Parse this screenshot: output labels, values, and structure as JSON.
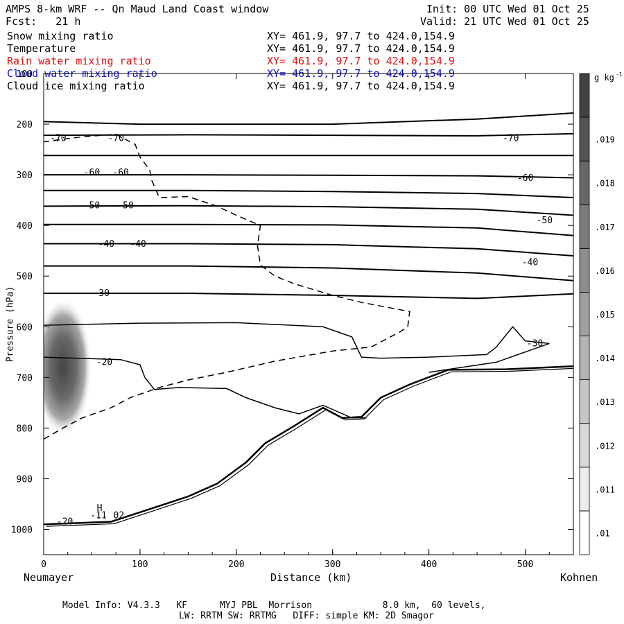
{
  "header": {
    "title": "AMPS 8-km WRF -- Qn Maud Land Coast window",
    "init": "Init: 00 UTC Wed 01 Oct 25",
    "fcst": "Fcst:   21 h",
    "valid": "Valid: 21 UTC Wed 01 Oct 25"
  },
  "fields": [
    {
      "name": "Snow mixing ratio",
      "xy": "XY= 461.9, 97.7 to 424.0,154.9",
      "color": "#000000"
    },
    {
      "name": "Temperature",
      "xy": "XY= 461.9, 97.7 to 424.0,154.9",
      "color": "#000000"
    },
    {
      "name": "Rain water mixing ratio",
      "xy": "XY= 461.9, 97.7 to 424.0,154.9",
      "color": "#e01010"
    },
    {
      "name": "Cloud water mixing ratio",
      "xy": "XY= 461.9, 97.7 to 424.0,154.9",
      "color": "#1010d0"
    },
    {
      "name": "Cloud ice mixing ratio",
      "xy": "XY= 461.9, 97.7 to 424.0,154.9",
      "color": "#000000"
    }
  ],
  "footer": {
    "line1": "Model Info: V4.3.3   KF      MYJ PBL  Morrison             8.0 km,  60 levels,",
    "line2": "LW: RRTM SW: RRTMG   DIFF: simple KM: 2D Smagor"
  },
  "chart_data": {
    "type": "contour",
    "xlabel": "Distance (km)",
    "ylabel": "Pressure (hPa)",
    "x_left_label": "Neumayer",
    "x_right_label": "Kohnen",
    "xlim": [
      0,
      550
    ],
    "ylim": [
      1050,
      100
    ],
    "x_ticks": [
      0,
      100,
      200,
      300,
      400,
      500
    ],
    "y_ticks": [
      100,
      200,
      300,
      400,
      500,
      600,
      700,
      800,
      900,
      1000
    ],
    "temperature_isotherms": [
      {
        "label": "-70",
        "points": [
          [
            0,
            222
          ],
          [
            150,
            221
          ],
          [
            300,
            222
          ],
          [
            450,
            223
          ],
          [
            550,
            219
          ]
        ]
      },
      {
        "label": "",
        "points": [
          [
            0,
            262
          ],
          [
            150,
            262
          ],
          [
            300,
            262
          ],
          [
            450,
            262
          ],
          [
            550,
            262
          ]
        ]
      },
      {
        "label": "-60",
        "points": [
          [
            0,
            300
          ],
          [
            150,
            300
          ],
          [
            300,
            301
          ],
          [
            450,
            302
          ],
          [
            550,
            306
          ]
        ]
      },
      {
        "label": "",
        "points": [
          [
            0,
            331
          ],
          [
            150,
            331
          ],
          [
            300,
            333
          ],
          [
            450,
            337
          ],
          [
            550,
            345
          ]
        ]
      },
      {
        "label": "-50",
        "points": [
          [
            0,
            362
          ],
          [
            150,
            361
          ],
          [
            300,
            363
          ],
          [
            450,
            368
          ],
          [
            550,
            380
          ]
        ]
      },
      {
        "label": "",
        "points": [
          [
            0,
            398
          ],
          [
            150,
            398
          ],
          [
            300,
            399
          ],
          [
            450,
            405
          ],
          [
            550,
            420
          ]
        ]
      },
      {
        "label": "-40",
        "points": [
          [
            0,
            436
          ],
          [
            150,
            436
          ],
          [
            300,
            438
          ],
          [
            450,
            446
          ],
          [
            550,
            460
          ]
        ]
      },
      {
        "label": "",
        "points": [
          [
            0,
            480
          ],
          [
            150,
            480
          ],
          [
            300,
            484
          ],
          [
            450,
            494
          ],
          [
            550,
            509
          ]
        ]
      },
      {
        "label": "-30",
        "points": [
          [
            0,
            534
          ],
          [
            150,
            534
          ],
          [
            300,
            538
          ],
          [
            450,
            544
          ],
          [
            550,
            535
          ]
        ]
      },
      {
        "label": "",
        "points": [
          [
            0,
            195
          ],
          [
            100,
            200
          ],
          [
            300,
            200
          ],
          [
            450,
            190
          ],
          [
            550,
            178
          ]
        ]
      }
    ],
    "isotherm_labels": [
      {
        "text": "-70",
        "x": 15,
        "p": 228
      },
      {
        "text": "-70",
        "x": 75,
        "p": 228
      },
      {
        "text": "-70",
        "x": 485,
        "p": 228
      },
      {
        "text": "-60",
        "x": 50,
        "p": 296
      },
      {
        "text": "-60",
        "x": 80,
        "p": 296
      },
      {
        "text": "-60",
        "x": 500,
        "p": 307
      },
      {
        "text": "-50",
        "x": 50,
        "p": 361
      },
      {
        "text": "-50",
        "x": 85,
        "p": 361
      },
      {
        "text": "-50",
        "x": 520,
        "p": 390
      },
      {
        "text": "-40",
        "x": 65,
        "p": 437
      },
      {
        "text": "-40",
        "x": 98,
        "p": 437
      },
      {
        "text": "-40",
        "x": 505,
        "p": 473
      },
      {
        "text": "-30",
        "x": 60,
        "p": 534
      },
      {
        "text": "-30",
        "x": 510,
        "p": 633
      },
      {
        "text": "-20",
        "x": 63,
        "p": 670
      },
      {
        "text": "-20",
        "x": 22,
        "p": 985
      },
      {
        "text": "-11",
        "x": 57,
        "p": 973
      },
      {
        "text": "02",
        "x": 78,
        "p": 973
      },
      {
        "text": "H",
        "x": 58,
        "p": 958
      }
    ],
    "minus20_contour": [
      [
        0,
        597
      ],
      [
        100,
        593
      ],
      [
        200,
        592
      ],
      [
        290,
        600
      ],
      [
        320,
        620
      ],
      [
        330,
        660
      ],
      [
        350,
        662
      ],
      [
        400,
        660
      ],
      [
        460,
        655
      ],
      [
        470,
        640
      ],
      [
        487,
        600
      ],
      [
        500,
        628
      ],
      [
        525,
        633
      ],
      [
        470,
        670
      ],
      [
        400,
        690
      ]
    ],
    "warm_contour": [
      [
        0,
        660
      ],
      [
        80,
        665
      ],
      [
        100,
        675
      ],
      [
        105,
        700
      ],
      [
        115,
        724
      ],
      [
        140,
        720
      ],
      [
        190,
        722
      ],
      [
        210,
        740
      ],
      [
        240,
        760
      ],
      [
        265,
        772
      ],
      [
        290,
        755
      ],
      [
        320,
        780
      ],
      [
        335,
        780
      ]
    ],
    "cloud_ice_dashed": [
      [
        0,
        822
      ],
      [
        20,
        800
      ],
      [
        40,
        780
      ],
      [
        70,
        760
      ],
      [
        90,
        740
      ],
      [
        120,
        720
      ],
      [
        150,
        705
      ],
      [
        190,
        690
      ],
      [
        240,
        668
      ],
      [
        300,
        648
      ],
      [
        340,
        640
      ],
      [
        370,
        610
      ],
      [
        378,
        600
      ],
      [
        380,
        570
      ],
      [
        330,
        552
      ],
      [
        300,
        538
      ],
      [
        260,
        515
      ],
      [
        240,
        500
      ],
      [
        225,
        478
      ],
      [
        222,
        440
      ],
      [
        225,
        400
      ],
      [
        200,
        380
      ],
      [
        180,
        362
      ],
      [
        150,
        343
      ],
      [
        120,
        345
      ],
      [
        112,
        310
      ],
      [
        110,
        290
      ],
      [
        100,
        265
      ],
      [
        95,
        240
      ],
      [
        75,
        220
      ],
      [
        40,
        225
      ],
      [
        0,
        235
      ]
    ],
    "terrain": [
      [
        0,
        990
      ],
      [
        70,
        985
      ],
      [
        110,
        960
      ],
      [
        150,
        935
      ],
      [
        180,
        910
      ],
      [
        210,
        868
      ],
      [
        230,
        830
      ],
      [
        260,
        796
      ],
      [
        290,
        760
      ],
      [
        310,
        780
      ],
      [
        330,
        778
      ],
      [
        350,
        740
      ],
      [
        380,
        714
      ],
      [
        420,
        685
      ],
      [
        480,
        684
      ],
      [
        550,
        678
      ]
    ],
    "snow_shading_max": {
      "x": 20,
      "p": 680
    },
    "colorbar": {
      "units": "g kg",
      "units_sup": "-1",
      "levels": [
        ".01",
        ".011",
        ".012",
        ".013",
        ".014",
        ".015",
        ".016",
        ".017",
        ".018",
        ".019"
      ]
    }
  }
}
